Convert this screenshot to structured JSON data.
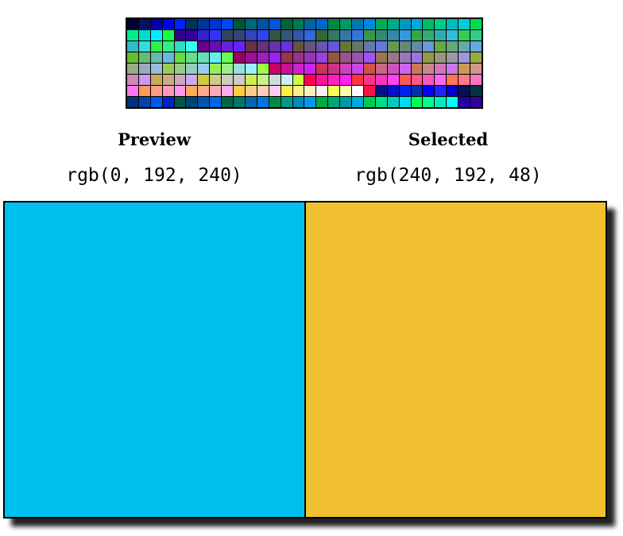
{
  "palette": {
    "rows": [
      [
        "#000033",
        "#001166",
        "#0000aa",
        "#0000ee",
        "#0022ff",
        "#003355",
        "#003399",
        "#0033cc",
        "#0044ff",
        "#005533",
        "#006677",
        "#005599",
        "#0055dd",
        "#006633",
        "#007755",
        "#006699",
        "#0066cc",
        "#008844",
        "#009966",
        "#0077aa",
        "#0088dd",
        "#00aa55",
        "#00aa88",
        "#0099bb",
        "#00aadd",
        "#00bb66",
        "#00cc88",
        "#00bbbb",
        "#00ccdd",
        "#00dd55"
      ],
      [
        "#00ee88",
        "#00ddcc",
        "#00eeff",
        "#11ff44",
        "#330088",
        "#330099",
        "#3322cc",
        "#3333ff",
        "#334455",
        "#334477",
        "#3344bb",
        "#3344ee",
        "#335544",
        "#335577",
        "#3355aa",
        "#3366dd",
        "#336633",
        "#337766",
        "#3377aa",
        "#3377dd",
        "#339944",
        "#338877",
        "#3388aa",
        "#3399dd",
        "#33aa44",
        "#33aa77",
        "#33aaaa",
        "#33bbdd",
        "#33cc55",
        "#33cc88"
      ],
      [
        "#33bbcc",
        "#33dddd",
        "#33ee44",
        "#33ee88",
        "#33ddbb",
        "#33ffee",
        "#660088",
        "#6611aa",
        "#6622dd",
        "#6622ff",
        "#663344",
        "#663377",
        "#6633aa",
        "#6633dd",
        "#665544",
        "#665577",
        "#6655aa",
        "#6655dd",
        "#667733",
        "#667766",
        "#6677aa",
        "#6677dd",
        "#669955",
        "#668877",
        "#6688aa",
        "#6699dd",
        "#66aa44",
        "#66aa77",
        "#66aaaa",
        "#66aadd"
      ],
      [
        "#66bb33",
        "#66bb77",
        "#66bbaa",
        "#66bbdd",
        "#66dd44",
        "#66dd88",
        "#66ddbb",
        "#66eeee",
        "#66ff55",
        "#990066",
        "#991199",
        "#9922bb",
        "#9922ee",
        "#993355",
        "#993388",
        "#9933bb",
        "#9944dd",
        "#995544",
        "#995588",
        "#9955aa",
        "#9955ee",
        "#997755",
        "#997788",
        "#9977bb",
        "#9977dd",
        "#999944",
        "#999977",
        "#9999aa",
        "#9999dd",
        "#99aa44"
      ],
      [
        "#99aa88",
        "#99aabb",
        "#99bbdd",
        "#99cc55",
        "#99cc88",
        "#99ccbb",
        "#99ccee",
        "#99ee55",
        "#99ee88",
        "#99dddd",
        "#99eeff",
        "#99ff44",
        "#cc0066",
        "#cc1199",
        "#cc22cc",
        "#cc22ee",
        "#cc3355",
        "#cc3388",
        "#cc44bb",
        "#cc44ee",
        "#cc5544",
        "#cc6688",
        "#cc55bb",
        "#cc66ee",
        "#cc7755",
        "#cc8888",
        "#cc77bb",
        "#cc77ee",
        "#cc9955",
        "#cc9988"
      ],
      [
        "#cc88bb",
        "#cc99ee",
        "#ccaa55",
        "#ccaa88",
        "#ccaabb",
        "#ccaaee",
        "#cccc44",
        "#cccc88",
        "#ccccbb",
        "#cccccc",
        "#ccee55",
        "#ccee88",
        "#ccdddd",
        "#cceeff",
        "#ccff44",
        "#ff0055",
        "#ff1199",
        "#ff22bb",
        "#ff22ee",
        "#ff3344",
        "#ff3388",
        "#ff33bb",
        "#ff44ee",
        "#ff5555",
        "#ff5588",
        "#ff55bb",
        "#ff66ee",
        "#ff7755",
        "#ff7788",
        "#ff77bb"
      ],
      [
        "#ff77ee",
        "#ff9955",
        "#ff9988",
        "#ff99bb",
        "#ff99ee",
        "#ffaa55",
        "#ffaa88",
        "#ffaabb",
        "#ffaaee",
        "#ffcc44",
        "#ffcc88",
        "#ffccbb",
        "#ffccee",
        "#ffee44",
        "#ffee88",
        "#ffeebb",
        "#ffeeee",
        "#ffff55",
        "#ffffaa",
        "#ffffff",
        "#ff1144",
        "#001188",
        "#0011cc",
        "#0022ee",
        "#0033aa",
        "#0000ff",
        "#2222ff",
        "#0000cc",
        "#001155",
        "#003344"
      ],
      [
        "#003377",
        "#0044aa",
        "#0055ee",
        "#0022cc",
        "#005544",
        "#004477",
        "#0055aa",
        "#0066dd",
        "#006644",
        "#007766",
        "#0066aa",
        "#0077dd",
        "#008844",
        "#009988",
        "#0088bb",
        "#0099ee",
        "#00aa44",
        "#00aa77",
        "#0099aa",
        "#00aadd",
        "#00cc55",
        "#00dd88",
        "#00ccbb",
        "#00ddee",
        "#00ff55",
        "#00ff88",
        "#00eebb",
        "#00ffee",
        "#2200aa",
        "#330099"
      ]
    ]
  },
  "preview": {
    "title": "Preview",
    "rgb_text": "rgb(0, 192, 240)",
    "color": "#00c0f0"
  },
  "selected": {
    "title": "Selected",
    "rgb_text": "rgb(240, 192, 48)",
    "color": "#f0c030"
  }
}
